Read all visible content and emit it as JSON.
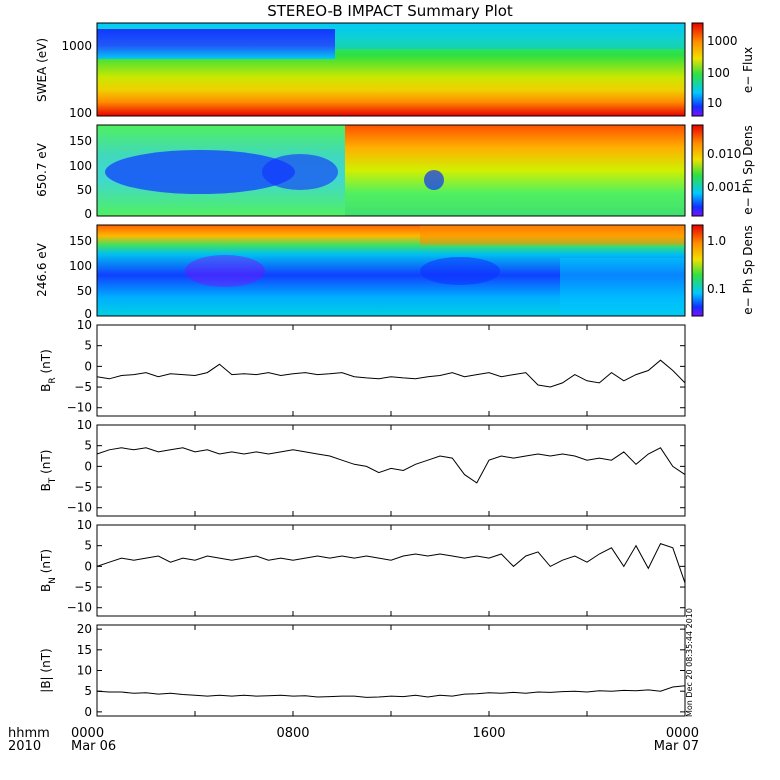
{
  "title": "STEREO-B IMPACT Summary Plot",
  "footer": {
    "row1_label": "hhmm",
    "row2_label": "2010",
    "ticks": [
      {
        "hhmm": "0000",
        "date": "Mar 06",
        "t": 0
      },
      {
        "hhmm": "0800",
        "date": "",
        "t": 8
      },
      {
        "hhmm": "1600",
        "date": "",
        "t": 16
      },
      {
        "hhmm": "0000",
        "date": "Mar 07",
        "t": 24
      }
    ]
  },
  "timestamp": "Mon Dec 20 08:35:44 2010",
  "colors": {
    "red": "#e00000",
    "orange": "#ff8c00",
    "yellow": "#f0e000",
    "green": "#30e040",
    "cyan": "#00c8ff",
    "blue": "#1030ff",
    "purple": "#7a10ff"
  },
  "chart_data": [
    {
      "type": "heatmap",
      "ylabel": "SWEA (eV)",
      "yscale": "log",
      "yticks": [
        "1000",
        "100"
      ],
      "colorbar": {
        "label": "e− Flux",
        "scale": "log",
        "ticks": [
          "1000",
          "100",
          "10"
        ]
      },
      "description_of_pattern": [
        {
          "t_range": [
            0,
            9.3
          ],
          "band": "high energy ~1000-2000 eV",
          "level": "low (blue/purple)"
        },
        {
          "t_range": [
            9.3,
            24
          ],
          "band": "high energy",
          "level": "low-moderate (cyan)"
        },
        {
          "t_range": [
            0,
            24
          ],
          "band": "~100-200 eV",
          "level": "high (orange/red)"
        }
      ]
    },
    {
      "type": "heatmap",
      "ylabel": "650.7 eV",
      "yticks": [
        "150",
        "100",
        "50",
        "0"
      ],
      "ylim": [
        0,
        180
      ],
      "colorbar": {
        "label": "e− Ph Sp Dens",
        "scale": "log",
        "ticks": [
          "0.010",
          "0.001"
        ]
      }
    },
    {
      "type": "heatmap",
      "ylabel": "246.6 eV",
      "yticks": [
        "150",
        "100",
        "50",
        "0"
      ],
      "ylim": [
        0,
        180
      ],
      "colorbar": {
        "label": "e− Ph Sp Dens",
        "scale": "log",
        "ticks": [
          "1.0",
          "0.1"
        ]
      }
    },
    {
      "type": "line",
      "ylabel": "B",
      "ylabel_sub": "R",
      "ylabel_unit": "(nT)",
      "ylim": [
        -12,
        10
      ],
      "yticks": [
        "10",
        "5",
        "0",
        "−5",
        "−10"
      ],
      "yticks_v": [
        10,
        5,
        0,
        -5,
        -10
      ],
      "x": [
        0,
        0.5,
        1,
        1.5,
        2,
        2.5,
        3,
        3.5,
        4,
        4.5,
        5,
        5.5,
        6,
        6.5,
        7,
        7.5,
        8,
        8.5,
        9,
        9.5,
        10,
        10.5,
        11,
        11.5,
        12,
        12.5,
        13,
        13.5,
        14,
        14.5,
        15,
        15.5,
        16,
        16.5,
        17,
        17.5,
        18,
        18.5,
        19,
        19.5,
        20,
        20.5,
        21,
        21.5,
        22,
        22.5,
        23,
        23.5,
        24
      ],
      "y": [
        -2.5,
        -3,
        -2.2,
        -2,
        -1.5,
        -2.5,
        -1.8,
        -2,
        -2.2,
        -1.5,
        0.5,
        -2,
        -1.8,
        -2,
        -1.5,
        -2.2,
        -1.8,
        -1.5,
        -2,
        -1.8,
        -1.5,
        -2.5,
        -2.8,
        -3,
        -2.5,
        -2.8,
        -3,
        -2.5,
        -2.2,
        -1.5,
        -2.5,
        -2,
        -1.5,
        -2.5,
        -2,
        -1.5,
        -4.5,
        -5,
        -4,
        -2,
        -3.5,
        -4,
        -1.5,
        -3.5,
        -2,
        -1,
        1.5,
        -1,
        -4
      ]
    },
    {
      "type": "line",
      "ylabel": "B",
      "ylabel_sub": "T",
      "ylabel_unit": "(nT)",
      "ylim": [
        -12,
        10
      ],
      "yticks": [
        "10",
        "5",
        "0",
        "−5",
        "−10"
      ],
      "yticks_v": [
        10,
        5,
        0,
        -5,
        -10
      ],
      "x": [
        0,
        0.5,
        1,
        1.5,
        2,
        2.5,
        3,
        3.5,
        4,
        4.5,
        5,
        5.5,
        6,
        6.5,
        7,
        7.5,
        8,
        8.5,
        9,
        9.5,
        10,
        10.5,
        11,
        11.5,
        12,
        12.5,
        13,
        13.5,
        14,
        14.5,
        15,
        15.5,
        16,
        16.5,
        17,
        17.5,
        18,
        18.5,
        19,
        19.5,
        20,
        20.5,
        21,
        21.5,
        22,
        22.5,
        23,
        23.5,
        24
      ],
      "y": [
        3,
        4,
        4.5,
        4,
        4.5,
        3.5,
        4,
        4.5,
        3.5,
        4,
        3,
        3.5,
        3,
        3.5,
        3,
        3.5,
        4,
        3.5,
        3,
        2.5,
        1.5,
        0.5,
        0,
        -1.5,
        -0.5,
        -1,
        0.5,
        1.5,
        2.5,
        2,
        -2,
        -4,
        1.5,
        2.5,
        2,
        2.5,
        3,
        2.5,
        3,
        2.5,
        1.5,
        2,
        1.5,
        3.5,
        0.5,
        3,
        4.5,
        0,
        -2
      ]
    },
    {
      "type": "line",
      "ylabel": "B",
      "ylabel_sub": "N",
      "ylabel_unit": "(nT)",
      "ylim": [
        -12,
        10
      ],
      "yticks": [
        "10",
        "5",
        "0",
        "−5",
        "−10"
      ],
      "yticks_v": [
        10,
        5,
        0,
        -5,
        -10
      ],
      "x": [
        0,
        0.5,
        1,
        1.5,
        2,
        2.5,
        3,
        3.5,
        4,
        4.5,
        5,
        5.5,
        6,
        6.5,
        7,
        7.5,
        8,
        8.5,
        9,
        9.5,
        10,
        10.5,
        11,
        11.5,
        12,
        12.5,
        13,
        13.5,
        14,
        14.5,
        15,
        15.5,
        16,
        16.5,
        17,
        17.5,
        18,
        18.5,
        19,
        19.5,
        20,
        20.5,
        21,
        21.5,
        22,
        22.5,
        23,
        23.5,
        24
      ],
      "y": [
        0,
        1,
        2,
        1.5,
        2,
        2.5,
        1,
        2,
        1.5,
        2.5,
        2,
        1.5,
        2,
        2.5,
        1.5,
        2,
        1.5,
        2,
        2.5,
        2,
        2.5,
        2,
        2.5,
        2,
        1.5,
        2.5,
        3,
        2.5,
        3,
        2.5,
        2,
        2.5,
        2,
        3,
        0,
        2.5,
        3.5,
        0,
        1.5,
        2.5,
        1,
        3,
        4.5,
        0,
        5,
        -0.5,
        5.5,
        4.5,
        -4
      ]
    },
    {
      "type": "line",
      "ylabel": "|B|",
      "ylabel_unit": "(nT)",
      "ylim": [
        -1,
        21
      ],
      "yticks": [
        "20",
        "15",
        "10",
        "5",
        "0"
      ],
      "yticks_v": [
        20,
        15,
        10,
        5,
        0
      ],
      "x": [
        0,
        0.5,
        1,
        1.5,
        2,
        2.5,
        3,
        3.5,
        4,
        4.5,
        5,
        5.5,
        6,
        6.5,
        7,
        7.5,
        8,
        8.5,
        9,
        9.5,
        10,
        10.5,
        11,
        11.5,
        12,
        12.5,
        13,
        13.5,
        14,
        14.5,
        15,
        15.5,
        16,
        16.5,
        17,
        17.5,
        18,
        18.5,
        19,
        19.5,
        20,
        20.5,
        21,
        21.5,
        22,
        22.5,
        23,
        23.5,
        24
      ],
      "y": [
        5,
        4.8,
        4.8,
        4.5,
        4.6,
        4.3,
        4.5,
        4.2,
        4,
        3.8,
        4,
        3.8,
        4,
        3.8,
        3.9,
        4,
        3.8,
        3.9,
        3.6,
        3.7,
        3.8,
        3.8,
        3.5,
        3.6,
        3.8,
        3.7,
        4,
        3.6,
        4,
        3.8,
        4.3,
        4.4,
        4.6,
        4.5,
        4.7,
        4.5,
        4.8,
        4.7,
        4.9,
        5,
        4.8,
        5.1,
        5,
        5.2,
        5.1,
        5.3,
        5,
        6,
        6.3
      ]
    }
  ]
}
